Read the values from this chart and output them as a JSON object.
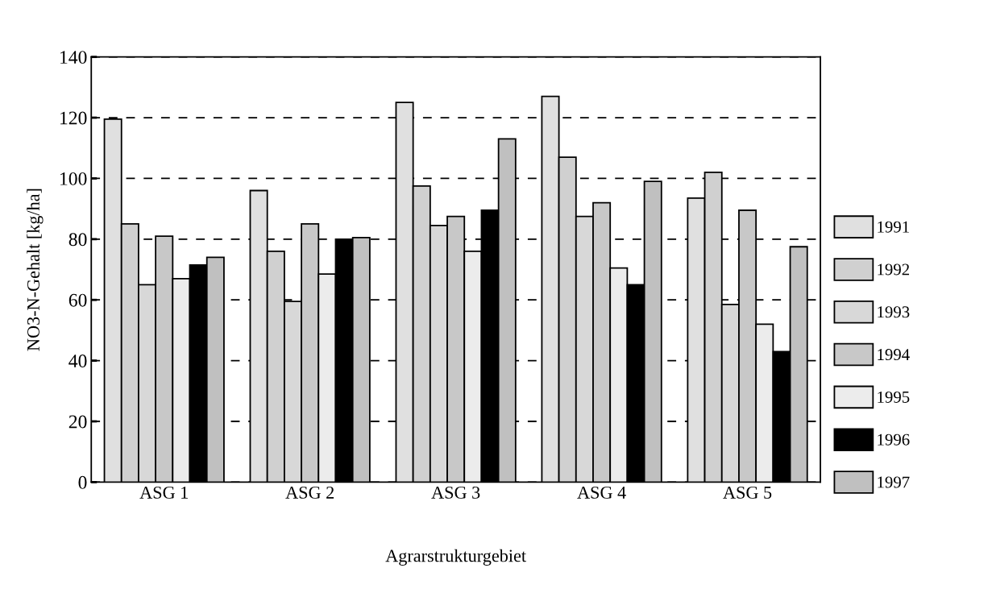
{
  "chart_data": {
    "type": "bar",
    "xlabel": "Agrarstrukturgebiet",
    "ylabel": "NO3-N-Gehalt [kg/ha]",
    "categories": [
      "ASG 1",
      "ASG 2",
      "ASG 3",
      "ASG 4",
      "ASG 5"
    ],
    "series": [
      {
        "name": "1991",
        "color": "#e0e0e0",
        "values": [
          119.5,
          96,
          125,
          127,
          93.5
        ]
      },
      {
        "name": "1992",
        "color": "#d0d0d0",
        "values": [
          85,
          76,
          97.5,
          107,
          102
        ]
      },
      {
        "name": "1993",
        "color": "#d8d8d8",
        "values": [
          65,
          59.5,
          84.5,
          87.5,
          58.5
        ]
      },
      {
        "name": "1994",
        "color": "#c8c8c8",
        "values": [
          81,
          85,
          87.5,
          92,
          89.5
        ]
      },
      {
        "name": "1995",
        "color": "#ececec",
        "values": [
          67,
          68.5,
          76,
          70.5,
          52
        ]
      },
      {
        "name": "1996",
        "color": "#000000",
        "values": [
          71.5,
          80,
          89.5,
          65,
          43
        ]
      },
      {
        "name": "1997",
        "color": "#c0c0c0",
        "values": [
          74,
          80.5,
          113,
          99,
          77.5
        ]
      }
    ],
    "ylim": [
      0,
      140
    ],
    "yticks": [
      0,
      20,
      40,
      60,
      80,
      100,
      120,
      140
    ],
    "grid": "y",
    "line_style": "dashed",
    "legend": "right"
  }
}
